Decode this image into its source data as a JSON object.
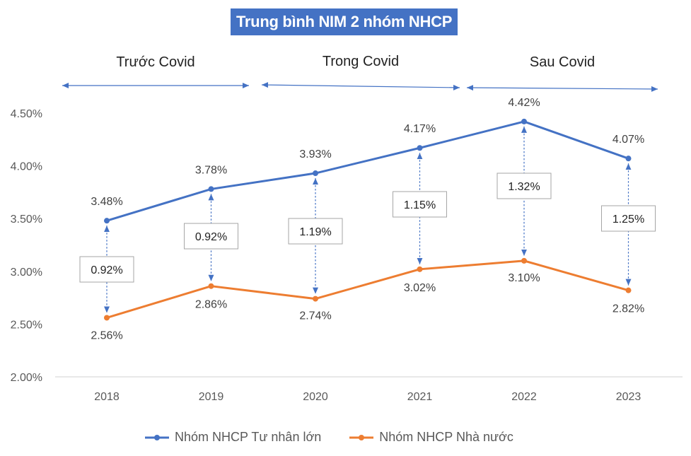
{
  "chart_data": {
    "type": "line",
    "title": "Trung bình NIM 2 nhóm NHCP",
    "categories": [
      "2018",
      "2019",
      "2020",
      "2021",
      "2022",
      "2023"
    ],
    "ylim": [
      2.0,
      4.5
    ],
    "yticks": [
      "4.50%",
      "4.00%",
      "3.50%",
      "3.00%",
      "2.50%",
      "2.00%"
    ],
    "ytick_values": [
      4.5,
      4.0,
      3.5,
      3.0,
      2.5,
      2.0
    ],
    "series": [
      {
        "name": "Nhóm NHCP Tư nhân lớn",
        "color": "#4472C4",
        "values": [
          3.48,
          3.78,
          3.93,
          4.17,
          4.42,
          4.07
        ],
        "labels": [
          "3.48%",
          "3.78%",
          "3.93%",
          "4.17%",
          "4.42%",
          "4.07%"
        ]
      },
      {
        "name": "Nhóm NHCP Nhà nước",
        "color": "#ED7D31",
        "values": [
          2.56,
          2.86,
          2.74,
          3.02,
          3.1,
          2.82
        ],
        "labels": [
          "2.56%",
          "2.86%",
          "2.74%",
          "3.02%",
          "3.10%",
          "2.82%"
        ]
      }
    ],
    "gaps": [
      "0.92%",
      "0.92%",
      "1.19%",
      "1.15%",
      "1.32%",
      "1.25%"
    ],
    "gap_values": [
      0.92,
      0.92,
      1.19,
      1.15,
      1.32,
      1.25
    ],
    "periods": [
      {
        "label": "Trước Covid",
        "from": "2018",
        "to": "2019"
      },
      {
        "label": "Trong Covid",
        "from": "2020",
        "to": "2021"
      },
      {
        "label": "Sau Covid",
        "from": "2022",
        "to": "2023"
      }
    ],
    "grid": false,
    "legend_position": "bottom"
  },
  "colors": {
    "title_bg": "#4472C4",
    "axis": "#D9D9D9",
    "tick_text": "#595959"
  },
  "legend": {
    "item1": "Nhóm NHCP Tư nhân lớn",
    "item2": "Nhóm NHCP Nhà nước"
  }
}
